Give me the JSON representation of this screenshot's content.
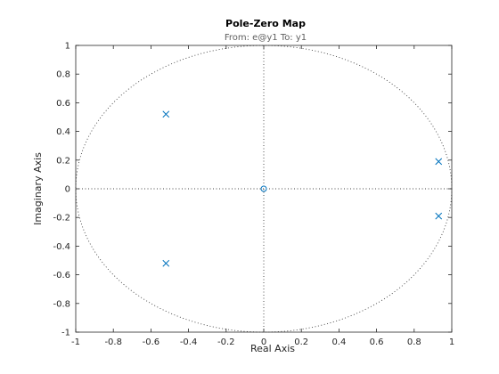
{
  "chart_data": {
    "type": "scatter",
    "title": "Pole-Zero Map",
    "subtitle": "From: e@y1  To: y1",
    "xlabel": "Real Axis",
    "ylabel": "Imaginary Axis",
    "xlim": [
      -1,
      1
    ],
    "ylim": [
      -1,
      1
    ],
    "x_ticks": [
      -1,
      -0.8,
      -0.6,
      -0.4,
      -0.2,
      0,
      0.2,
      0.4,
      0.6,
      0.8,
      1
    ],
    "y_ticks": [
      -1,
      -0.8,
      -0.6,
      -0.4,
      -0.2,
      0,
      0.2,
      0.4,
      0.6,
      0.8,
      1
    ],
    "x_tick_labels": [
      "-1",
      "-0.8",
      "-0.6",
      "-0.4",
      "-0.2",
      "0",
      "0.2",
      "0.4",
      "0.6",
      "0.8",
      "1"
    ],
    "y_tick_labels": [
      "-1",
      "-0.8",
      "-0.6",
      "-0.4",
      "-0.2",
      "0",
      "0.2",
      "0.4",
      "0.6",
      "0.8",
      "1"
    ],
    "grid": false,
    "unit_circle": true,
    "series": [
      {
        "marker": "x",
        "color": "#0072BD",
        "points": [
          {
            "x": -0.52,
            "y": 0.52
          },
          {
            "x": -0.52,
            "y": -0.52
          },
          {
            "x": 0.93,
            "y": 0.19
          },
          {
            "x": 0.93,
            "y": -0.19
          }
        ]
      },
      {
        "marker": "o",
        "color": "#0072BD",
        "points": [
          {
            "x": 0,
            "y": 0
          }
        ]
      }
    ]
  }
}
